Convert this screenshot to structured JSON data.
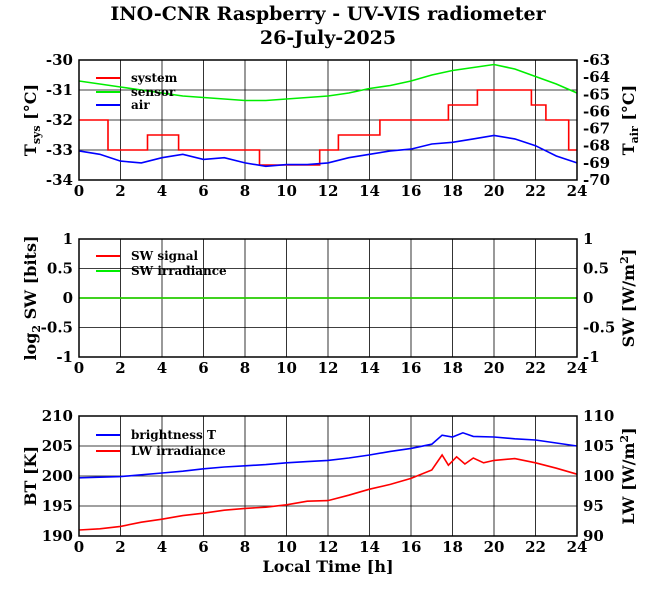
{
  "header": {
    "title": "INO-CNR Raspberry - UV-VIS radiometer",
    "subtitle": "26-July-2025"
  },
  "colors": {
    "red": "#ff0000",
    "green": "#00ee00",
    "blue": "#0000ff"
  },
  "chart_data": [
    {
      "type": "line",
      "xlabel": "",
      "ylabel": "T_sys [°C]",
      "ylabel2": "T_air [°C]",
      "xlim": [
        0,
        24
      ],
      "ylim": [
        -34,
        -30
      ],
      "y2lim": [
        -70,
        -63
      ],
      "xticks": [
        "0",
        "2",
        "4",
        "6",
        "8",
        "10",
        "12",
        "14",
        "16",
        "18",
        "20",
        "22",
        "24"
      ],
      "yticks": [
        "-34",
        "-33",
        "-32",
        "-31",
        "-30"
      ],
      "y2ticks": [
        "-70",
        "-69",
        "-68",
        "-67",
        "-66",
        "-65",
        "-64",
        "-63"
      ],
      "grid": true,
      "legend": "top-left",
      "series": [
        {
          "name": "system",
          "color": "#ff0000",
          "axis": "left",
          "step": true,
          "x": [
            0,
            0.9,
            1.4,
            2.6,
            3.3,
            4.8,
            6.5,
            8.5,
            8.7,
            10,
            11.6,
            12.5,
            13.5,
            14.5,
            15.6,
            17.5,
            17.8,
            18.2,
            19.2,
            20.5,
            21.8,
            22.5,
            23.2,
            23.6,
            24
          ],
          "y": [
            -32,
            -32,
            -33,
            -33,
            -32.5,
            -33,
            -33,
            -33,
            -33.5,
            -33.5,
            -33,
            -32.5,
            -32.5,
            -32,
            -32,
            -32,
            -31.5,
            -31.5,
            -31,
            -31,
            -31.5,
            -32,
            -32,
            -33,
            -33
          ]
        },
        {
          "name": "sensor",
          "color": "#00ee00",
          "axis": "left",
          "x": [
            0,
            1,
            2,
            3,
            4,
            5,
            6,
            7,
            8,
            9,
            10,
            11,
            12,
            13,
            14,
            15,
            16,
            17,
            18,
            19,
            20,
            21,
            22,
            23,
            24
          ],
          "y": [
            -30.7,
            -30.8,
            -30.9,
            -31.0,
            -31.1,
            -31.2,
            -31.25,
            -31.3,
            -31.35,
            -31.35,
            -31.3,
            -31.25,
            -31.2,
            -31.1,
            -30.95,
            -30.85,
            -30.7,
            -30.5,
            -30.35,
            -30.25,
            -30.15,
            -30.3,
            -30.55,
            -30.8,
            -31.1
          ]
        },
        {
          "name": "air",
          "color": "#0000ff",
          "axis": "right",
          "x": [
            0,
            1,
            2,
            3,
            4,
            5,
            6,
            7,
            8,
            9,
            10,
            11,
            12,
            13,
            14,
            15,
            16,
            17,
            18,
            19,
            20,
            21,
            22,
            23,
            24
          ],
          "y": [
            -68.3,
            -68.5,
            -68.9,
            -69.0,
            -68.7,
            -68.5,
            -68.8,
            -68.7,
            -69.0,
            -69.2,
            -69.1,
            -69.1,
            -69.0,
            -68.7,
            -68.5,
            -68.3,
            -68.2,
            -67.9,
            -67.8,
            -67.6,
            -67.4,
            -67.6,
            -68.0,
            -68.6,
            -69.0
          ]
        }
      ]
    },
    {
      "type": "line",
      "xlabel": "",
      "ylabel": "log_2 SW [bits]",
      "ylabel2": "SW [W/m^2]",
      "xlim": [
        0,
        24
      ],
      "ylim": [
        -1,
        1
      ],
      "y2lim": [
        -1,
        1
      ],
      "xticks": [
        "0",
        "2",
        "4",
        "6",
        "8",
        "10",
        "12",
        "14",
        "16",
        "18",
        "20",
        "22",
        "24"
      ],
      "yticks": [
        "-1",
        "-0.5",
        "0",
        "0.5",
        "1"
      ],
      "y2ticks": [
        "-1",
        "-0.5",
        "0",
        "0.5",
        "1"
      ],
      "grid": true,
      "legend": "top-left",
      "series": [
        {
          "name": "SW signal",
          "color": "#ff0000",
          "axis": "left",
          "x": [
            0,
            24
          ],
          "y": [
            0,
            0
          ]
        },
        {
          "name": "SW irradiance",
          "color": "#00ee00",
          "axis": "right",
          "x": [
            0,
            24
          ],
          "y": [
            0,
            0
          ]
        }
      ]
    },
    {
      "type": "line",
      "xlabel": "Local Time [h]",
      "ylabel": "BT [K]",
      "ylabel2": "LW [W/m^2]",
      "xlim": [
        0,
        24
      ],
      "ylim": [
        190,
        210
      ],
      "y2lim": [
        90,
        110
      ],
      "xticks": [
        "0",
        "2",
        "4",
        "6",
        "8",
        "10",
        "12",
        "14",
        "16",
        "18",
        "20",
        "22",
        "24"
      ],
      "yticks": [
        "190",
        "195",
        "200",
        "205",
        "210"
      ],
      "y2ticks": [
        "90",
        "95",
        "100",
        "105",
        "110"
      ],
      "grid": true,
      "legend": "top-left",
      "series": [
        {
          "name": "brightness T",
          "color": "#0000ff",
          "axis": "left",
          "x": [
            0,
            1,
            2,
            3,
            4,
            5,
            6,
            7,
            8,
            9,
            10,
            11,
            12,
            13,
            14,
            15,
            16,
            17,
            17.5,
            18,
            18.5,
            19,
            20,
            21,
            22,
            23,
            24
          ],
          "y": [
            199.7,
            199.8,
            199.9,
            200.2,
            200.5,
            200.8,
            201.2,
            201.5,
            201.7,
            201.9,
            202.2,
            202.4,
            202.6,
            203.0,
            203.5,
            204.1,
            204.6,
            205.3,
            206.8,
            206.5,
            207.2,
            206.6,
            206.5,
            206.2,
            206.0,
            205.5,
            205.0
          ]
        },
        {
          "name": "LW irradiance",
          "color": "#ff0000",
          "axis": "right",
          "x": [
            0,
            1,
            2,
            3,
            4,
            5,
            6,
            7,
            8,
            9,
            10,
            11,
            12,
            13,
            14,
            15,
            16,
            17,
            17.5,
            17.8,
            18.2,
            18.6,
            19,
            19.5,
            20,
            21,
            22,
            23,
            24
          ],
          "y": [
            91.0,
            91.2,
            91.6,
            92.3,
            92.8,
            93.4,
            93.8,
            94.3,
            94.6,
            94.8,
            95.2,
            95.8,
            95.9,
            96.8,
            97.8,
            98.6,
            99.6,
            101.0,
            103.5,
            101.8,
            103.2,
            102.0,
            103.0,
            102.2,
            102.6,
            102.9,
            102.2,
            101.3,
            100.3
          ]
        }
      ]
    }
  ]
}
